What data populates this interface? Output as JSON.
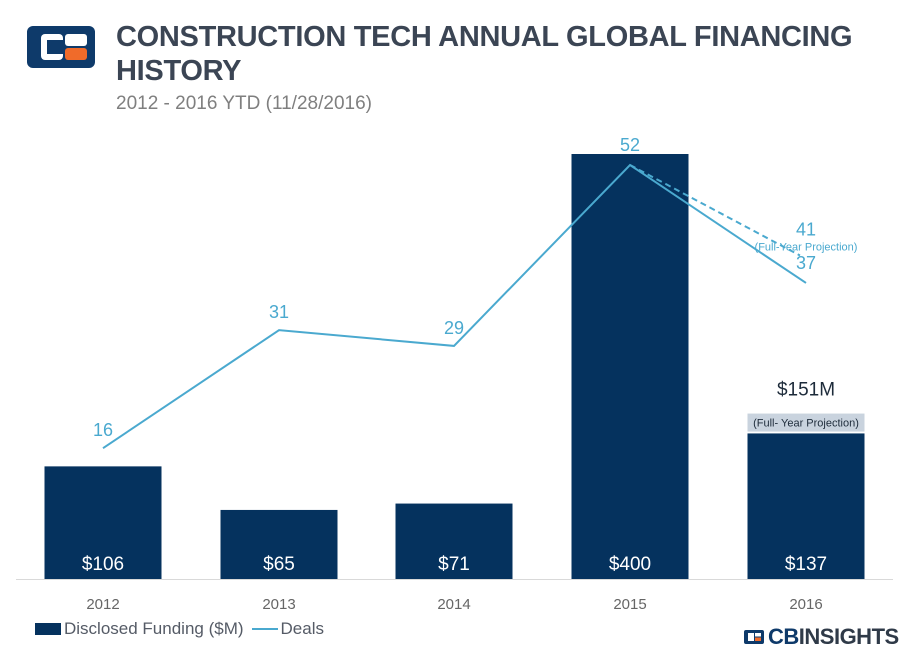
{
  "header": {
    "title": "CONSTRUCTION TECH ANNUAL GLOBAL FINANCING HISTORY",
    "subtitle": "2012 - 2016 YTD (11/28/2016)"
  },
  "brand": {
    "cb": "CB",
    "insights": "INSIGHTS"
  },
  "legend": {
    "bar_label": "Disclosed Funding ($M)",
    "line_label": "Deals"
  },
  "colors": {
    "bar": "#05325e",
    "line": "#4aa9cf",
    "axis_text": "#666666",
    "brand_orange": "#f06b2a"
  },
  "chart_data": {
    "type": "bar",
    "title": "CONSTRUCTION TECH ANNUAL GLOBAL FINANCING HISTORY",
    "subtitle": "2012 - 2016 YTD (11/28/2016)",
    "categories": [
      "2012",
      "2013",
      "2014",
      "2015",
      "2016"
    ],
    "series": [
      {
        "name": "Disclosed Funding ($M)",
        "type": "bar",
        "values": [
          106,
          65,
          71,
          400,
          137
        ],
        "labels": [
          "$106",
          "$65",
          "$71",
          "$400",
          "$137"
        ],
        "projection": {
          "category": "2016",
          "value": 151,
          "label": "$151M",
          "note": "(Full- Year Projection)"
        }
      },
      {
        "name": "Deals",
        "type": "line",
        "values": [
          16,
          31,
          29,
          52,
          37
        ],
        "labels": [
          "16",
          "31",
          "29",
          "52",
          "37"
        ],
        "projection": {
          "category": "2016",
          "value": 41,
          "label": "41",
          "note": "(Full-Year Projection)"
        }
      }
    ],
    "bar_ylim": [
      0,
      400
    ],
    "line_ylim": [
      0,
      52
    ],
    "xlabel": "",
    "ylabel": ""
  }
}
